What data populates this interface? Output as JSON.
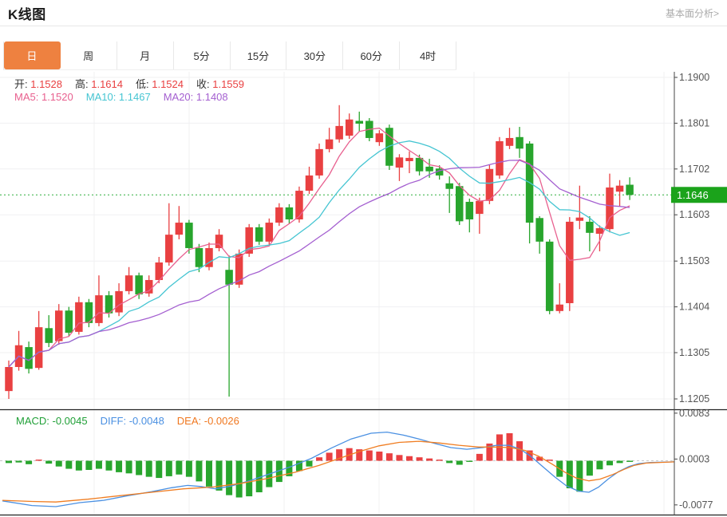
{
  "header": {
    "title": "K线图",
    "link": "基本面分析>"
  },
  "tabs": [
    {
      "key": "day",
      "label": "日",
      "selected": true
    },
    {
      "key": "week",
      "label": "周",
      "selected": false
    },
    {
      "key": "month",
      "label": "月",
      "selected": false
    },
    {
      "key": "5min",
      "label": "5分",
      "selected": false
    },
    {
      "key": "15min",
      "label": "15分",
      "selected": false
    },
    {
      "key": "30min",
      "label": "30分",
      "selected": false
    },
    {
      "key": "60min",
      "label": "60分",
      "selected": false
    },
    {
      "key": "4hour",
      "label": "4时",
      "selected": false
    }
  ],
  "readout": {
    "ohlc": [
      {
        "label": "开:",
        "value": "1.1528"
      },
      {
        "label": "高:",
        "value": "1.1614"
      },
      {
        "label": "低:",
        "value": "1.1524"
      },
      {
        "label": "收:",
        "value": "1.1559"
      }
    ],
    "ma": [
      {
        "label": "MA5:",
        "value": "1.1520",
        "color": "#e8608f"
      },
      {
        "label": "MA10:",
        "value": "1.1467",
        "color": "#45c5d2"
      },
      {
        "label": "MA20:",
        "value": "1.1408",
        "color": "#a45fd0"
      }
    ],
    "macd": [
      {
        "label": "MACD:",
        "value": "-0.0045",
        "color": "#21a038"
      },
      {
        "label": "DIFF:",
        "value": "-0.0048",
        "color": "#4a90e2"
      },
      {
        "label": "DEA:",
        "value": "-0.0026",
        "color": "#f07820"
      }
    ]
  },
  "colors": {
    "accent_orange": "#ee8140",
    "candle_up_red": "#e94041",
    "candle_down_green": "#28a52d",
    "badge_green": "#1ba31b",
    "last_price_line": "#2fae3a",
    "ohlc_value_red": "#e94041",
    "ma5_pink": "#e8608f",
    "ma10_cyan": "#45c5d2",
    "ma20_purple": "#a45fd0",
    "diff_blue": "#4a90e2",
    "dea_orange": "#f07d21",
    "axis_text": "#555555",
    "grid": "#f0f0f2"
  },
  "chart_data": {
    "type": "candlestick+macd",
    "title": "K线图 daily candles with MA5/MA10/MA20 and MACD",
    "price_axis_ticks": [
      1.19,
      1.1801,
      1.1702,
      1.1603,
      1.1503,
      1.1404,
      1.1305,
      1.1205
    ],
    "last_price": 1.1646,
    "candles_ochl": [
      [
        1.1222,
        1.1274,
        1.1288,
        1.1205
      ],
      [
        1.1274,
        1.1321,
        1.1352,
        1.1266
      ],
      [
        1.1317,
        1.127,
        1.1329,
        1.126
      ],
      [
        1.1272,
        1.136,
        1.1395,
        1.1268
      ],
      [
        1.1358,
        1.1326,
        1.1386,
        1.1317
      ],
      [
        1.133,
        1.1396,
        1.141,
        1.1322
      ],
      [
        1.1396,
        1.1348,
        1.1404,
        1.134
      ],
      [
        1.135,
        1.1414,
        1.1426,
        1.1344
      ],
      [
        1.1414,
        1.1369,
        1.1421,
        1.136
      ],
      [
        1.1369,
        1.1429,
        1.1472,
        1.1362
      ],
      [
        1.1429,
        1.139,
        1.1438,
        1.1381
      ],
      [
        1.1392,
        1.1438,
        1.1455,
        1.1384
      ],
      [
        1.1438,
        1.1472,
        1.149,
        1.1431
      ],
      [
        1.1472,
        1.1431,
        1.1478,
        1.1421
      ],
      [
        1.1433,
        1.1462,
        1.1472,
        1.1426
      ],
      [
        1.1462,
        1.15,
        1.1512,
        1.1455
      ],
      [
        1.15,
        1.156,
        1.1628,
        1.1493
      ],
      [
        1.156,
        1.1586,
        1.1622,
        1.155
      ],
      [
        1.1586,
        1.1531,
        1.1592,
        1.1519
      ],
      [
        1.1531,
        1.149,
        1.154,
        1.1479
      ],
      [
        1.149,
        1.1531,
        1.1543,
        1.1483
      ],
      [
        1.1531,
        1.156,
        1.1572,
        1.1524
      ],
      [
        1.1484,
        1.1452,
        1.1515,
        1.121
      ],
      [
        1.1452,
        1.1519,
        1.1528,
        1.1445
      ],
      [
        1.1519,
        1.1576,
        1.1583,
        1.1512
      ],
      [
        1.1576,
        1.1545,
        1.1583,
        1.1538
      ],
      [
        1.1545,
        1.1586,
        1.1595,
        1.1538
      ],
      [
        1.1586,
        1.1619,
        1.1628,
        1.1579
      ],
      [
        1.1619,
        1.1593,
        1.1626,
        1.1584
      ],
      [
        1.1593,
        1.1655,
        1.1664,
        1.1586
      ],
      [
        1.1655,
        1.1688,
        1.1707,
        1.1648
      ],
      [
        1.1688,
        1.1745,
        1.1757,
        1.1681
      ],
      [
        1.1745,
        1.1766,
        1.1791,
        1.1738
      ],
      [
        1.1766,
        1.1795,
        1.184,
        1.1759
      ],
      [
        1.1774,
        1.1809,
        1.1822,
        1.1767
      ],
      [
        1.1806,
        1.18,
        1.1826,
        1.1783
      ],
      [
        1.1806,
        1.1769,
        1.1812,
        1.1762
      ],
      [
        1.176,
        1.1779,
        1.1786,
        1.1752
      ],
      [
        1.1791,
        1.1709,
        1.1798,
        1.17
      ],
      [
        1.1705,
        1.1727,
        1.1734,
        1.1676
      ],
      [
        1.1719,
        1.1726,
        1.174,
        1.1693
      ],
      [
        1.1726,
        1.1697,
        1.1733,
        1.1688
      ],
      [
        1.1707,
        1.1697,
        1.1724,
        1.1683
      ],
      [
        1.1703,
        1.1688,
        1.171,
        1.1679
      ],
      [
        1.1671,
        1.1659,
        1.1686,
        1.1607
      ],
      [
        1.1665,
        1.1589,
        1.1672,
        1.1581
      ],
      [
        1.1631,
        1.1593,
        1.1638,
        1.1565
      ],
      [
        1.1605,
        1.1633,
        1.164,
        1.1562
      ],
      [
        1.1633,
        1.1702,
        1.1712,
        1.1626
      ],
      [
        1.1688,
        1.1762,
        1.1771,
        1.1681
      ],
      [
        1.1752,
        1.1769,
        1.1791,
        1.1745
      ],
      [
        1.1771,
        1.1746,
        1.1793,
        1.1726
      ],
      [
        1.1757,
        1.1586,
        1.1762,
        1.1541
      ],
      [
        1.1596,
        1.1545,
        1.16,
        1.1519
      ],
      [
        1.1545,
        1.1395,
        1.155,
        1.1388
      ],
      [
        1.1395,
        1.1409,
        1.1455,
        1.139
      ],
      [
        1.1412,
        1.1588,
        1.1598,
        1.1395
      ],
      [
        1.159,
        1.1597,
        1.1666,
        1.1572
      ],
      [
        1.1588,
        1.1564,
        1.16,
        1.1524
      ],
      [
        1.1562,
        1.1574,
        1.158,
        1.1524
      ],
      [
        1.1572,
        1.1662,
        1.1692,
        1.1565
      ],
      [
        1.1653,
        1.1666,
        1.1678,
        1.1622
      ],
      [
        1.1668,
        1.1646,
        1.1684,
        1.1635
      ]
    ],
    "ma_periods": [
      5,
      10,
      20
    ],
    "macd_axis_ticks": [
      0.0083,
      0.0003,
      -0.0077
    ],
    "macd_hist": [
      -0.0004,
      -0.0003,
      -0.0006,
      0.0002,
      -0.0005,
      -0.001,
      -0.0014,
      -0.0017,
      -0.0016,
      -0.0014,
      -0.0017,
      -0.002,
      -0.0022,
      -0.0025,
      -0.0028,
      -0.003,
      -0.0027,
      -0.0024,
      -0.0028,
      -0.0036,
      -0.0045,
      -0.0052,
      -0.006,
      -0.0064,
      -0.0062,
      -0.0055,
      -0.0046,
      -0.0037,
      -0.0027,
      -0.0018,
      -0.001,
      0.0006,
      0.0014,
      0.002,
      0.0022,
      0.002,
      0.0018,
      0.0016,
      0.0013,
      0.001,
      0.0008,
      0.0006,
      0.0004,
      0.0002,
      -0.0004,
      -0.0007,
      -0.0002,
      0.0012,
      0.003,
      0.0046,
      0.0048,
      0.0034,
      0.0018,
      0.0007,
      0.0002,
      -0.0028,
      -0.0048,
      -0.0054,
      -0.0026,
      -0.0015,
      -0.0008,
      -0.0004,
      -0.0002
    ],
    "diff_line": [
      [
        3,
        -0.007
      ],
      [
        40,
        -0.0078
      ],
      [
        70,
        -0.008
      ],
      [
        100,
        -0.0073
      ],
      [
        130,
        -0.0069
      ],
      [
        160,
        -0.0061
      ],
      [
        190,
        -0.0054
      ],
      [
        215,
        -0.0047
      ],
      [
        235,
        -0.0043
      ],
      [
        252,
        -0.0045
      ],
      [
        270,
        -0.0049
      ],
      [
        290,
        -0.0044
      ],
      [
        315,
        -0.0034
      ],
      [
        340,
        -0.0022
      ],
      [
        365,
        -0.001
      ],
      [
        390,
        0.0004
      ],
      [
        415,
        0.0022
      ],
      [
        440,
        0.0038
      ],
      [
        465,
        0.0048
      ],
      [
        485,
        0.005
      ],
      [
        505,
        0.0045
      ],
      [
        525,
        0.0038
      ],
      [
        545,
        0.003
      ],
      [
        565,
        0.0023
      ],
      [
        585,
        0.002
      ],
      [
        605,
        0.0023
      ],
      [
        622,
        0.0027
      ],
      [
        638,
        0.0027
      ],
      [
        652,
        0.002
      ],
      [
        665,
        0.0008
      ],
      [
        680,
        -0.001
      ],
      [
        695,
        -0.0028
      ],
      [
        710,
        -0.0044
      ],
      [
        725,
        -0.0053
      ],
      [
        738,
        -0.0055
      ],
      [
        750,
        -0.0046
      ],
      [
        762,
        -0.0032
      ],
      [
        775,
        -0.0019
      ],
      [
        788,
        -0.001
      ],
      [
        800,
        -0.0005
      ],
      [
        815,
        -0.0003
      ],
      [
        845,
        -0.0002
      ]
    ],
    "dea_line": [
      [
        3,
        -0.0069
      ],
      [
        40,
        -0.0071
      ],
      [
        70,
        -0.0072
      ],
      [
        110,
        -0.0067
      ],
      [
        150,
        -0.0061
      ],
      [
        190,
        -0.0055
      ],
      [
        230,
        -0.0049
      ],
      [
        265,
        -0.0046
      ],
      [
        300,
        -0.004
      ],
      [
        335,
        -0.0031
      ],
      [
        370,
        -0.002
      ],
      [
        400,
        -0.0008
      ],
      [
        425,
        0.0004
      ],
      [
        450,
        0.0016
      ],
      [
        475,
        0.0026
      ],
      [
        500,
        0.0032
      ],
      [
        525,
        0.0034
      ],
      [
        550,
        0.0031
      ],
      [
        575,
        0.0027
      ],
      [
        600,
        0.0024
      ],
      [
        620,
        0.0024
      ],
      [
        640,
        0.0023
      ],
      [
        658,
        0.0018
      ],
      [
        675,
        0.0008
      ],
      [
        692,
        -0.0006
      ],
      [
        708,
        -0.002
      ],
      [
        722,
        -0.003
      ],
      [
        738,
        -0.0035
      ],
      [
        752,
        -0.0032
      ],
      [
        768,
        -0.0024
      ],
      [
        782,
        -0.0015
      ],
      [
        795,
        -0.0008
      ],
      [
        810,
        -0.0004
      ],
      [
        845,
        -0.0002
      ]
    ]
  }
}
